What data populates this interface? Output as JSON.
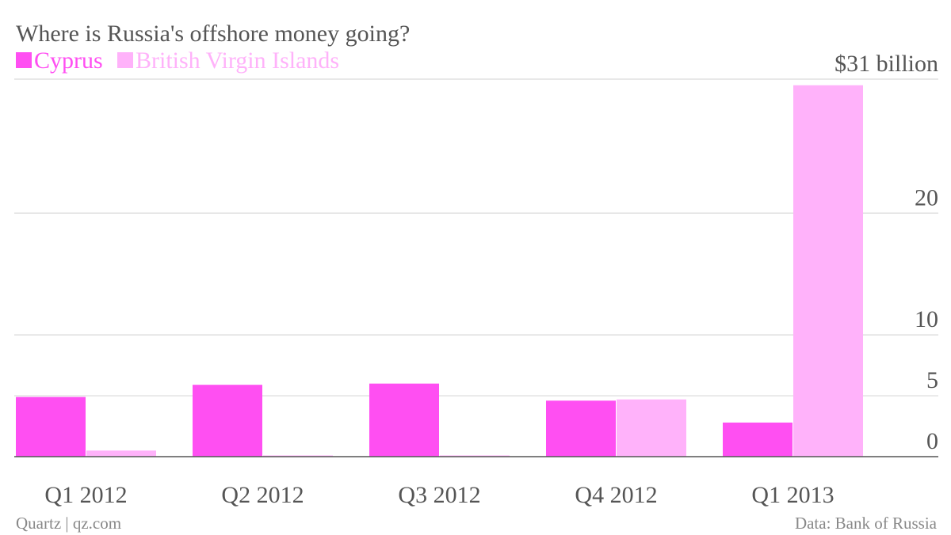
{
  "chart_data": {
    "type": "bar",
    "title": "Where is Russia's offshore money going?",
    "categories": [
      "Q1 2012",
      "Q2 2012",
      "Q3 2012",
      "Q4 2012",
      "Q1 2013"
    ],
    "series": [
      {
        "name": "Cyprus",
        "color": "#ff4ff2",
        "values": [
          4.9,
          5.9,
          6.0,
          4.6,
          2.8
        ]
      },
      {
        "name": "British Virgin Islands",
        "color": "#ffb2fa",
        "values": [
          0.5,
          0.1,
          0.1,
          4.7,
          30.5
        ]
      }
    ],
    "ylim": [
      0,
      31
    ],
    "y_ticks": [
      {
        "value": 0,
        "label": "0"
      },
      {
        "value": 5,
        "label": "5"
      },
      {
        "value": 10,
        "label": "10"
      },
      {
        "value": 20,
        "label": "20"
      },
      {
        "value": 31,
        "label": "$31 billion"
      }
    ],
    "y_axis_side": "right",
    "grid": true,
    "legend_position": "top-left",
    "xlabel": "",
    "ylabel": ""
  },
  "footer": {
    "credit": "Quartz | qz.com",
    "source": "Data: Bank of Russia"
  }
}
